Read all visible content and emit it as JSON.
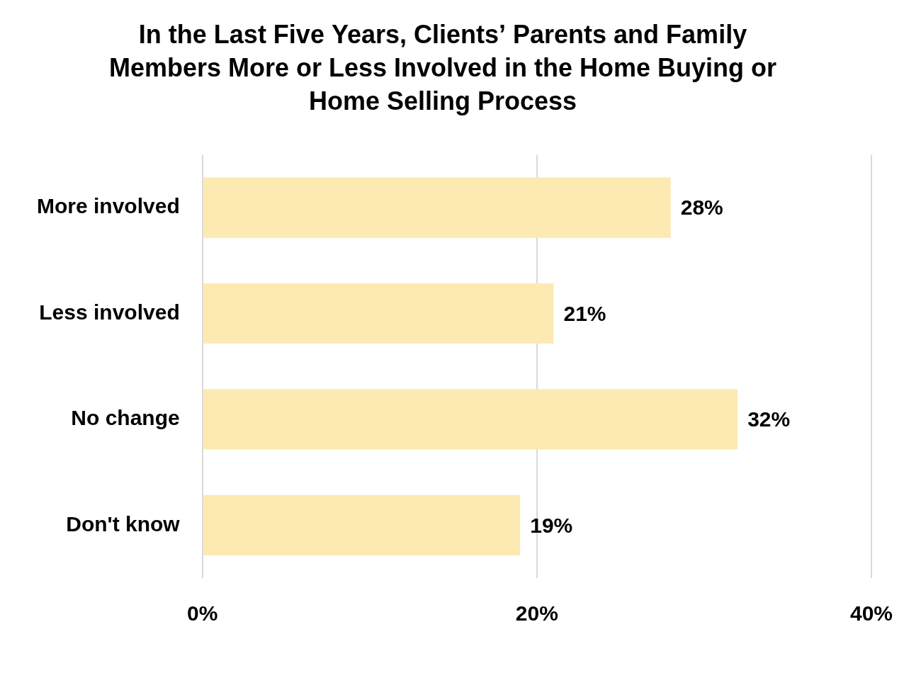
{
  "chart_data": {
    "type": "bar",
    "orientation": "horizontal",
    "title": "In the Last Five Years, Clients’ Parents and Family Members More or Less Involved in the Home Buying or Home Selling Process",
    "categories": [
      "More involved",
      "Less involved",
      "No change",
      "Don't know"
    ],
    "values": [
      28,
      21,
      32,
      19
    ],
    "value_labels": [
      "28%",
      "21%",
      "32%",
      "19%"
    ],
    "data_labels": true,
    "color": "#fdeab3",
    "xlim": [
      0,
      40
    ],
    "xticks": [
      {
        "value": 0,
        "label": "0%"
      },
      {
        "value": 20,
        "label": "20%"
      },
      {
        "value": 40,
        "label": "40%"
      }
    ],
    "grid": true,
    "legend": false
  }
}
